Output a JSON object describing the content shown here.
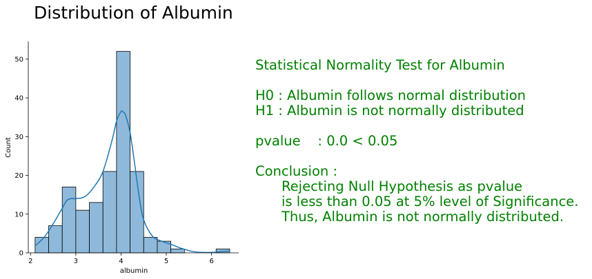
{
  "title": "Distribution of Albumin",
  "chart_data": {
    "type": "bar",
    "subtype": "histogram-with-kde",
    "xlabel": "albumin",
    "ylabel": "Count",
    "xlim": [
      1.95,
      6.6
    ],
    "ylim": [
      0,
      54.6
    ],
    "xticks": [
      2,
      3,
      4,
      5,
      6
    ],
    "yticks": [
      0,
      10,
      20,
      30,
      40,
      50
    ],
    "bin_edges": [
      2.1,
      2.4,
      2.7,
      3.0,
      3.3,
      3.6,
      3.9,
      4.2,
      4.5,
      4.8,
      5.1,
      5.4,
      5.7,
      6.0,
      6.3,
      6.6
    ],
    "bins": [
      {
        "x0": 2.1,
        "x1": 2.4,
        "count": 4
      },
      {
        "x0": 2.4,
        "x1": 2.7,
        "count": 7
      },
      {
        "x0": 2.7,
        "x1": 3.0,
        "count": 17
      },
      {
        "x0": 3.0,
        "x1": 3.3,
        "count": 11
      },
      {
        "x0": 3.3,
        "x1": 3.6,
        "count": 13
      },
      {
        "x0": 3.6,
        "x1": 3.9,
        "count": 21
      },
      {
        "x0": 3.9,
        "x1": 4.2,
        "count": 52
      },
      {
        "x0": 4.2,
        "x1": 4.5,
        "count": 21
      },
      {
        "x0": 4.5,
        "x1": 4.8,
        "count": 4
      },
      {
        "x0": 4.8,
        "x1": 5.1,
        "count": 3
      },
      {
        "x0": 5.1,
        "x1": 5.4,
        "count": 1
      },
      {
        "x0": 6.1,
        "x1": 6.4,
        "count": 1
      }
    ],
    "kde": {
      "x": [
        2.1,
        2.3,
        2.5,
        2.7,
        2.8,
        2.9,
        3.0,
        3.2,
        3.4,
        3.6,
        3.8,
        3.9,
        4.0,
        4.05,
        4.1,
        4.2,
        4.3,
        4.4,
        4.5,
        4.7,
        4.9,
        5.1,
        5.3,
        5.6,
        5.9,
        6.1,
        6.3,
        6.4
      ],
      "y": [
        1.8,
        4.0,
        7.5,
        11.5,
        13.5,
        14.0,
        14.0,
        14.5,
        17.0,
        21.0,
        29.0,
        34.0,
        36.5,
        36.3,
        35.5,
        31.0,
        23.0,
        14.5,
        8.5,
        4.2,
        3.0,
        2.2,
        1.3,
        0.3,
        0.1,
        0.2,
        0.4,
        0.4
      ]
    },
    "colors": {
      "bar_fill": "#8fb9da",
      "bar_edge": "#000000",
      "kde": "#1f77b4"
    },
    "grid": false
  },
  "test": {
    "heading": "Statistical Normality Test for Albumin",
    "h0": "H0 : Albumin follows normal distribution",
    "h1": "H1 : Albumin is not normally distributed",
    "pvalue": "pvalue    : 0.0 < 0.05",
    "conclusion_label": "Conclusion :",
    "conclusion_lines": [
      "Rejecting Null Hypothesis as pvalue",
      "is less than 0.05 at 5% level of Significance.",
      "Thus, Albumin is not normally distributed."
    ],
    "color": "#008000"
  }
}
